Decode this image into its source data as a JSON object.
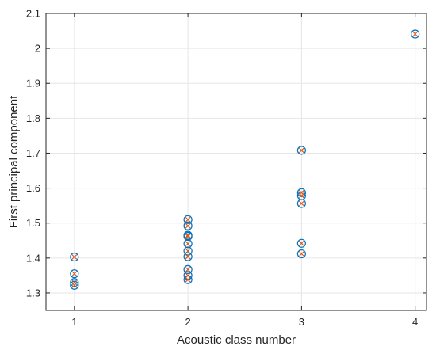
{
  "chart_data": {
    "type": "scatter",
    "xlabel": "Acoustic class number",
    "ylabel": "First principal component",
    "xlim": [
      0.75,
      4.1
    ],
    "ylim": [
      1.25,
      2.1
    ],
    "xticks": [
      "1",
      "2",
      "3",
      "4"
    ],
    "yticks": [
      "1.3",
      "1.4",
      "1.5",
      "1.6",
      "1.7",
      "1.8",
      "1.9",
      "2",
      "2.1"
    ],
    "grid": true,
    "markers": {
      "circle_color": "#0072BD",
      "cross_color": "#D95319"
    },
    "points": [
      [
        1,
        1.403
      ],
      [
        1,
        1.355
      ],
      [
        1,
        1.33
      ],
      [
        1,
        1.322
      ],
      [
        2,
        1.51
      ],
      [
        2,
        1.492
      ],
      [
        2,
        1.465
      ],
      [
        2,
        1.462
      ],
      [
        2,
        1.441
      ],
      [
        2,
        1.42
      ],
      [
        2,
        1.404
      ],
      [
        2,
        1.367
      ],
      [
        2,
        1.35
      ],
      [
        2,
        1.338
      ],
      [
        3,
        1.708
      ],
      [
        3,
        1.587
      ],
      [
        3,
        1.578
      ],
      [
        3,
        1.556
      ],
      [
        3,
        1.442
      ],
      [
        3,
        1.412
      ],
      [
        4,
        2.041
      ]
    ]
  }
}
